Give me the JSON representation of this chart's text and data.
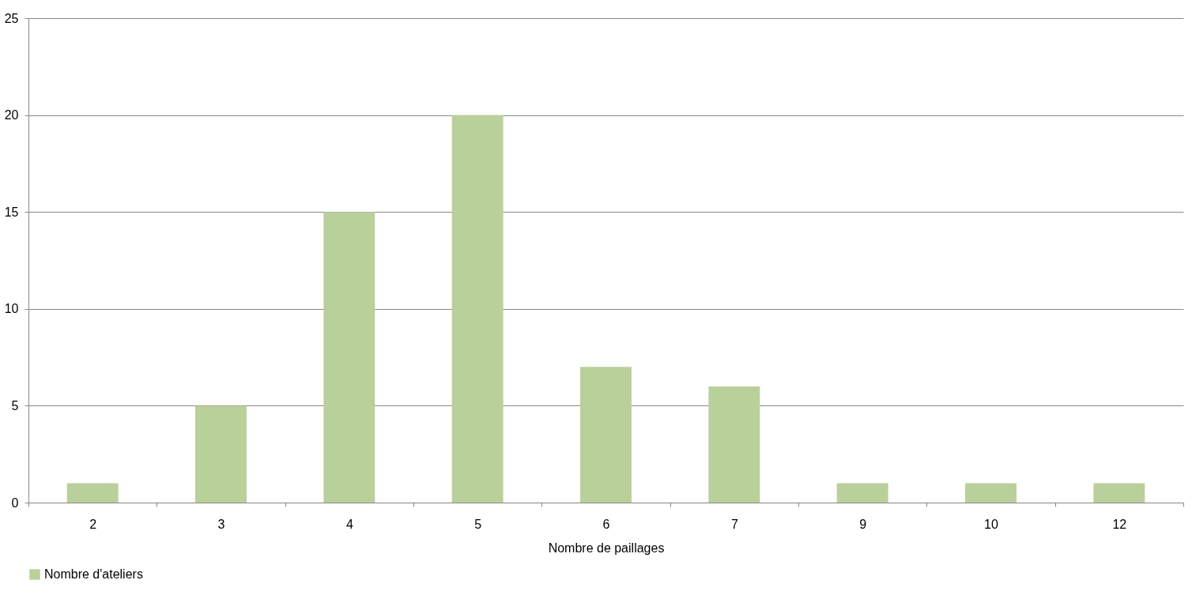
{
  "chart_data": {
    "type": "bar",
    "xlabel": "Nombre de paillages",
    "categories": [
      "2",
      "3",
      "4",
      "5",
      "6",
      "7",
      "9",
      "10",
      "12"
    ],
    "series": [
      {
        "name": "Nombre d'ateliers",
        "color": "#b9d09a",
        "values": [
          1,
          5,
          15,
          20,
          7,
          6,
          1,
          1,
          1
        ]
      }
    ],
    "ylim": [
      0,
      25
    ],
    "yticks": [
      0,
      5,
      10,
      15,
      20,
      25
    ],
    "grid": "y",
    "legend": "bottom"
  }
}
